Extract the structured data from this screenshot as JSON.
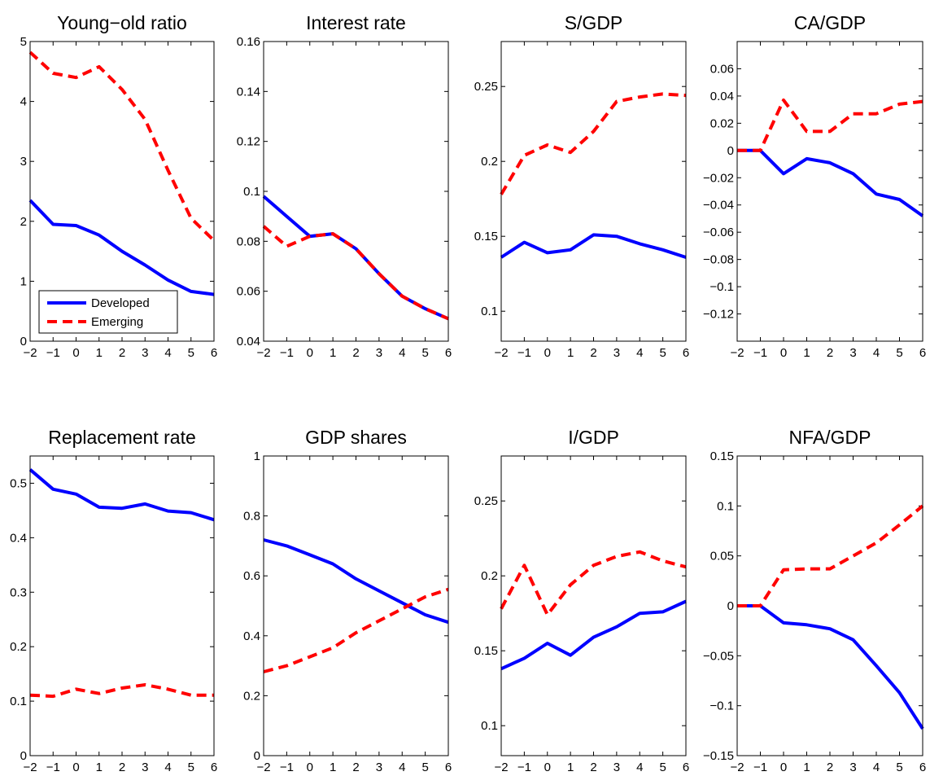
{
  "figure": {
    "legend": {
      "entries": [
        "Developed",
        "Emerging"
      ],
      "placement": "lower-left of first panel"
    },
    "colors": {
      "developed": "#0000ff",
      "emerging": "#ff0000"
    }
  },
  "chart_data": [
    {
      "type": "line",
      "title": "Young−old ratio",
      "xlabel": "",
      "ylabel": "",
      "x": [
        -2,
        -1,
        0,
        1,
        2,
        3,
        4,
        5,
        6
      ],
      "xlim": [
        -2,
        6
      ],
      "ylim": [
        0,
        5
      ],
      "xticks": [
        "−2",
        "−1",
        "0",
        "1",
        "2",
        "3",
        "4",
        "5",
        "6"
      ],
      "yticks": [
        0,
        1,
        2,
        3,
        4,
        5
      ],
      "ytick_labels": [
        "0",
        "1",
        "2",
        "3",
        "4",
        "5"
      ],
      "grid": false,
      "legend": true,
      "series": [
        {
          "name": "Developed",
          "style": "solid",
          "values": [
            2.35,
            1.95,
            1.93,
            1.77,
            1.5,
            1.27,
            1.02,
            0.83,
            0.78
          ]
        },
        {
          "name": "Emerging",
          "style": "dashed",
          "values": [
            4.82,
            4.47,
            4.4,
            4.58,
            4.2,
            3.7,
            2.85,
            2.05,
            1.68
          ]
        }
      ]
    },
    {
      "type": "line",
      "title": "Interest rate",
      "xlabel": "",
      "ylabel": "",
      "x": [
        -2,
        -1,
        0,
        1,
        2,
        3,
        4,
        5,
        6
      ],
      "xlim": [
        -2,
        6
      ],
      "ylim": [
        0.04,
        0.16
      ],
      "xticks": [
        "−2",
        "−1",
        "0",
        "1",
        "2",
        "3",
        "4",
        "5",
        "6"
      ],
      "yticks": [
        0.04,
        0.06,
        0.08,
        0.1,
        0.12,
        0.14,
        0.16
      ],
      "ytick_labels": [
        "0.04",
        "0.06",
        "0.08",
        "0.1",
        "0.12",
        "0.14",
        "0.16"
      ],
      "grid": false,
      "legend": false,
      "series": [
        {
          "name": "Developed",
          "style": "solid",
          "values": [
            0.098,
            0.09,
            0.082,
            0.083,
            0.077,
            0.067,
            0.058,
            0.053,
            0.049
          ]
        },
        {
          "name": "Emerging",
          "style": "dashed",
          "values": [
            0.086,
            0.078,
            0.082,
            0.083,
            0.077,
            0.067,
            0.058,
            0.053,
            0.049
          ]
        }
      ]
    },
    {
      "type": "line",
      "title": "S/GDP",
      "xlabel": "",
      "ylabel": "",
      "x": [
        -2,
        -1,
        0,
        1,
        2,
        3,
        4,
        5,
        6
      ],
      "xlim": [
        -2,
        6
      ],
      "ylim": [
        0.08,
        0.28
      ],
      "xticks": [
        "−2",
        "−1",
        "0",
        "1",
        "2",
        "3",
        "4",
        "5",
        "6"
      ],
      "yticks": [
        0.1,
        0.15,
        0.2,
        0.25
      ],
      "ytick_labels": [
        "0.1",
        "0.15",
        "0.2",
        "0.25"
      ],
      "grid": false,
      "legend": false,
      "series": [
        {
          "name": "Developed",
          "style": "solid",
          "values": [
            0.136,
            0.146,
            0.139,
            0.141,
            0.151,
            0.15,
            0.145,
            0.141,
            0.136
          ]
        },
        {
          "name": "Emerging",
          "style": "dashed",
          "values": [
            0.178,
            0.204,
            0.211,
            0.206,
            0.22,
            0.24,
            0.243,
            0.245,
            0.244
          ]
        }
      ]
    },
    {
      "type": "line",
      "title": "CA/GDP",
      "xlabel": "",
      "ylabel": "",
      "x": [
        -2,
        -1,
        0,
        1,
        2,
        3,
        4,
        5,
        6
      ],
      "xlim": [
        -2,
        6
      ],
      "ylim": [
        -0.14,
        0.08
      ],
      "xticks": [
        "−2",
        "−1",
        "0",
        "1",
        "2",
        "3",
        "4",
        "5",
        "6"
      ],
      "yticks": [
        -0.12,
        -0.1,
        -0.08,
        -0.06,
        -0.04,
        -0.02,
        0,
        0.02,
        0.04,
        0.06
      ],
      "ytick_labels": [
        "−0.12",
        "−0.1",
        "−0.08",
        "−0.06",
        "−0.04",
        "−0.02",
        "0",
        "0.02",
        "0.04",
        "0.06"
      ],
      "grid": false,
      "legend": false,
      "series": [
        {
          "name": "Developed",
          "style": "solid",
          "values": [
            0,
            0,
            -0.017,
            -0.006,
            -0.009,
            -0.017,
            -0.032,
            -0.036,
            -0.048
          ]
        },
        {
          "name": "Emerging",
          "style": "dashed",
          "values": [
            0,
            0,
            0.037,
            0.014,
            0.014,
            0.027,
            0.027,
            0.034,
            0.036
          ]
        }
      ]
    },
    {
      "type": "line",
      "title": "Replacement rate",
      "xlabel": "",
      "ylabel": "",
      "x": [
        -2,
        -1,
        0,
        1,
        2,
        3,
        4,
        5,
        6
      ],
      "xlim": [
        -2,
        6
      ],
      "ylim": [
        0,
        0.55
      ],
      "xticks": [
        "−2",
        "−1",
        "0",
        "1",
        "2",
        "3",
        "4",
        "5",
        "6"
      ],
      "yticks": [
        0,
        0.1,
        0.2,
        0.3,
        0.4,
        0.5
      ],
      "ytick_labels": [
        "0",
        "0.1",
        "0.2",
        "0.3",
        "0.4",
        "0.5"
      ],
      "grid": false,
      "legend": false,
      "series": [
        {
          "name": "Developed",
          "style": "solid",
          "values": [
            0.525,
            0.489,
            0.48,
            0.456,
            0.454,
            0.462,
            0.449,
            0.446,
            0.433
          ]
        },
        {
          "name": "Emerging",
          "style": "dashed",
          "values": [
            0.111,
            0.109,
            0.122,
            0.114,
            0.124,
            0.13,
            0.122,
            0.111,
            0.111
          ]
        }
      ]
    },
    {
      "type": "line",
      "title": "GDP shares",
      "xlabel": "",
      "ylabel": "",
      "x": [
        -2,
        -1,
        0,
        1,
        2,
        3,
        4,
        5,
        6
      ],
      "xlim": [
        -2,
        6
      ],
      "ylim": [
        0,
        1
      ],
      "xticks": [
        "−2",
        "−1",
        "0",
        "1",
        "2",
        "3",
        "4",
        "5",
        "6"
      ],
      "yticks": [
        0,
        0.2,
        0.4,
        0.6,
        0.8,
        1
      ],
      "ytick_labels": [
        "0",
        "0.2",
        "0.4",
        "0.6",
        "0.8",
        "1"
      ],
      "grid": false,
      "legend": false,
      "series": [
        {
          "name": "Developed",
          "style": "solid",
          "values": [
            0.72,
            0.7,
            0.67,
            0.64,
            0.59,
            0.55,
            0.51,
            0.47,
            0.445
          ]
        },
        {
          "name": "Emerging",
          "style": "dashed",
          "values": [
            0.28,
            0.3,
            0.33,
            0.36,
            0.41,
            0.45,
            0.49,
            0.53,
            0.555
          ]
        }
      ]
    },
    {
      "type": "line",
      "title": "I/GDP",
      "xlabel": "",
      "ylabel": "",
      "x": [
        -2,
        -1,
        0,
        1,
        2,
        3,
        4,
        5,
        6
      ],
      "xlim": [
        -2,
        6
      ],
      "ylim": [
        0.08,
        0.28
      ],
      "xticks": [
        "−2",
        "−1",
        "0",
        "1",
        "2",
        "3",
        "4",
        "5",
        "6"
      ],
      "yticks": [
        0.1,
        0.15,
        0.2,
        0.25
      ],
      "ytick_labels": [
        "0.1",
        "0.15",
        "0.2",
        "0.25"
      ],
      "grid": false,
      "legend": false,
      "series": [
        {
          "name": "Developed",
          "style": "solid",
          "values": [
            0.138,
            0.145,
            0.155,
            0.147,
            0.159,
            0.166,
            0.175,
            0.176,
            0.183
          ]
        },
        {
          "name": "Emerging",
          "style": "dashed",
          "values": [
            0.178,
            0.207,
            0.174,
            0.194,
            0.207,
            0.213,
            0.216,
            0.21,
            0.206
          ]
        }
      ]
    },
    {
      "type": "line",
      "title": "NFA/GDP",
      "xlabel": "",
      "ylabel": "",
      "x": [
        -2,
        -1,
        0,
        1,
        2,
        3,
        4,
        5,
        6
      ],
      "xlim": [
        -2,
        6
      ],
      "ylim": [
        -0.15,
        0.15
      ],
      "xticks": [
        "−2",
        "−1",
        "0",
        "1",
        "2",
        "3",
        "4",
        "5",
        "6"
      ],
      "yticks": [
        -0.15,
        -0.1,
        -0.05,
        0,
        0.05,
        0.1,
        0.15
      ],
      "ytick_labels": [
        "−0.15",
        "−0.1",
        "−0.05",
        "0",
        "0.05",
        "0.1",
        "0.15"
      ],
      "grid": false,
      "legend": false,
      "series": [
        {
          "name": "Developed",
          "style": "solid",
          "values": [
            0,
            0,
            -0.017,
            -0.019,
            -0.023,
            -0.034,
            -0.06,
            -0.087,
            -0.123
          ]
        },
        {
          "name": "Emerging",
          "style": "dashed",
          "values": [
            0,
            0,
            0.036,
            0.037,
            0.037,
            0.05,
            0.063,
            0.081,
            0.1
          ]
        }
      ]
    }
  ]
}
